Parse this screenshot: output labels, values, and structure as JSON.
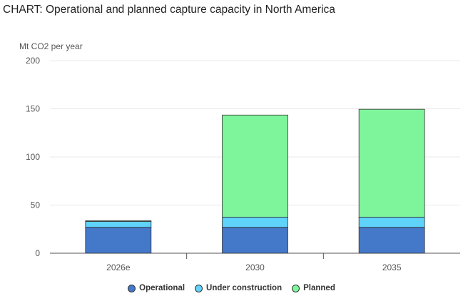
{
  "title": "CHART: Operational and planned capture capacity in North America",
  "chart_data": {
    "type": "bar",
    "stacked": true,
    "ylabel": "Mt CO2 per year",
    "ylim": [
      0,
      200
    ],
    "yticks": [
      0,
      50,
      100,
      150,
      200
    ],
    "grid": true,
    "legend_position": "bottom",
    "categories": [
      "2026e",
      "2030",
      "2035"
    ],
    "series": [
      {
        "name": "Operational",
        "color": "#4479c9",
        "values": [
          27,
          27,
          27
        ]
      },
      {
        "name": "Under construction",
        "color": "#5fd3f9",
        "values": [
          6,
          10.5,
          10.5
        ]
      },
      {
        "name": "Planned",
        "color": "#7ef59b",
        "values": [
          0.7,
          106,
          112
        ]
      }
    ]
  }
}
